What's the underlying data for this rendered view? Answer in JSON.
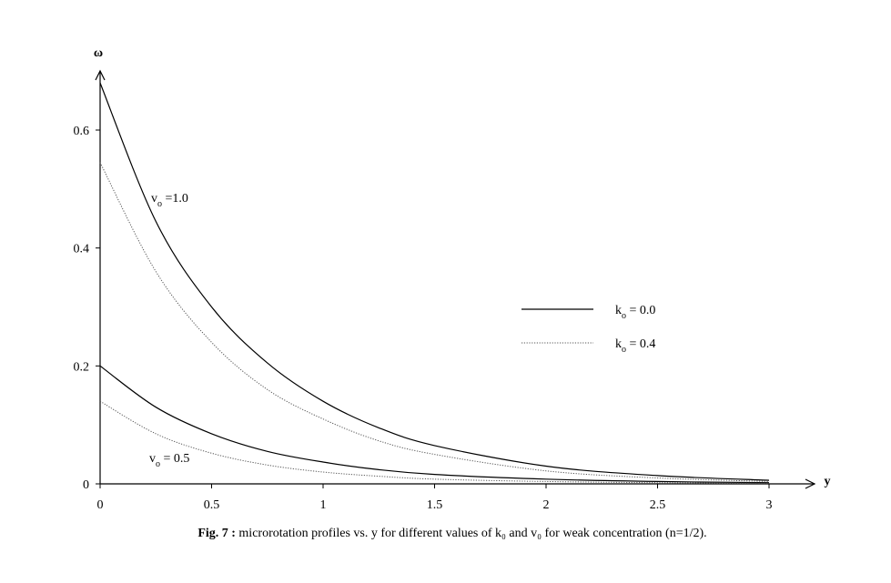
{
  "chart_data": {
    "type": "line",
    "xlabel": "y",
    "ylabel": "ω",
    "xlim": [
      0,
      3
    ],
    "ylim": [
      0,
      0.7
    ],
    "x_ticks": [
      "0",
      "0.5",
      "1",
      "1.5",
      "2",
      "2.5",
      "3"
    ],
    "y_ticks": [
      "0",
      "0.2",
      "0.4",
      "0.6"
    ],
    "grid": false,
    "legend_position": "right",
    "legend": [
      {
        "label": "k",
        "subscript": "o",
        "suffix": " = 0.0",
        "style": "solid"
      },
      {
        "label": "k",
        "subscript": "o",
        "suffix": " = 0.4",
        "style": "dotted"
      }
    ],
    "annotations": [
      {
        "label": "v",
        "subscript": "o",
        "suffix": " =1.0"
      },
      {
        "label": "v",
        "subscript": "o",
        "suffix": " = 0.5"
      }
    ],
    "series": [
      {
        "style": "solid",
        "color": "#000000",
        "x": [
          0,
          0.25,
          0.5,
          0.75,
          1.0,
          1.25,
          1.5,
          2.0,
          2.5,
          3.0
        ],
        "y": [
          0.68,
          0.445,
          0.3,
          0.205,
          0.14,
          0.095,
          0.065,
          0.03,
          0.014,
          0.006
        ]
      },
      {
        "style": "dotted",
        "color": "#555555",
        "x": [
          0,
          0.25,
          0.5,
          0.75,
          1.0,
          1.25,
          1.5,
          2.0,
          2.5,
          3.0
        ],
        "y": [
          0.545,
          0.36,
          0.24,
          0.16,
          0.11,
          0.073,
          0.05,
          0.022,
          0.01,
          0.004
        ]
      },
      {
        "style": "solid",
        "color": "#000000",
        "x": [
          0,
          0.25,
          0.5,
          0.75,
          1.0,
          1.25,
          1.5,
          2.0,
          2.5,
          3.0
        ],
        "y": [
          0.2,
          0.13,
          0.085,
          0.055,
          0.037,
          0.024,
          0.016,
          0.008,
          0.004,
          0.002
        ]
      },
      {
        "style": "dotted",
        "color": "#555555",
        "x": [
          0,
          0.25,
          0.5,
          0.75,
          1.0,
          1.25,
          1.5,
          2.0,
          2.5,
          3.0
        ],
        "y": [
          0.14,
          0.085,
          0.052,
          0.032,
          0.02,
          0.013,
          0.008,
          0.004,
          0.002,
          0.001
        ]
      }
    ]
  },
  "caption": {
    "bold": "Fig. 7 :",
    "text": " microrotation profiles vs. y for different values of  k₀ and v₀ for  weak concentration (n=1/2)."
  }
}
